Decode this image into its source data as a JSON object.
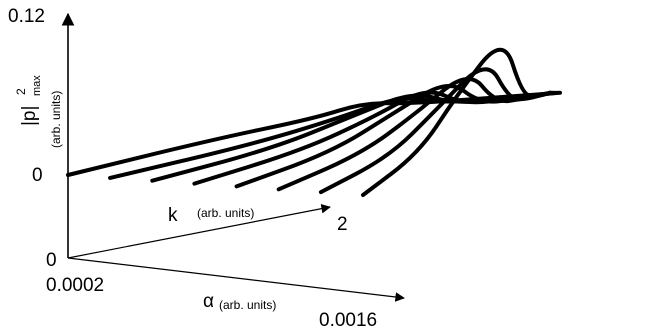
{
  "chart_data": {
    "type": "line",
    "projection": "3d-waterfall",
    "axes": {
      "z": {
        "label_main": "|p|",
        "label_sup": "2",
        "label_sub": "max",
        "label_units": "(arb. units)",
        "ticks": [
          "0.12",
          "0"
        ],
        "range": [
          0,
          0.12
        ]
      },
      "k": {
        "label": "k",
        "units": "(arb. units)",
        "tick_end": "2",
        "tick_origin": "0",
        "range": [
          0,
          2
        ]
      },
      "alpha": {
        "label": "α",
        "units": "(arb. units)",
        "tick_start": "0.0002",
        "tick_end": "0.0016",
        "range": [
          0.0002,
          0.0016
        ]
      }
    },
    "series": [
      {
        "alpha": 0.0002,
        "k": [
          0,
          0.6,
          1.0,
          1.2,
          1.4,
          1.8,
          2.0
        ],
        "p2": [
          0.0,
          0.02,
          0.03,
          0.04,
          0.035,
          0.033,
          0.032
        ]
      },
      {
        "alpha": 0.0004,
        "k": [
          0,
          0.6,
          1.0,
          1.3,
          1.5,
          1.8,
          2.0
        ],
        "p2": [
          0.0,
          0.015,
          0.03,
          0.045,
          0.034,
          0.032,
          0.032
        ]
      },
      {
        "alpha": 0.0006,
        "k": [
          0,
          0.6,
          1.0,
          1.3,
          1.5,
          1.8,
          2.0
        ],
        "p2": [
          0.0,
          0.015,
          0.035,
          0.05,
          0.034,
          0.032,
          0.032
        ]
      },
      {
        "alpha": 0.0008,
        "k": [
          0,
          0.6,
          1.0,
          1.3,
          1.5,
          1.8,
          2.0
        ],
        "p2": [
          0.0,
          0.015,
          0.035,
          0.055,
          0.034,
          0.032,
          0.032
        ]
      },
      {
        "alpha": 0.001,
        "k": [
          0,
          0.6,
          1.0,
          1.35,
          1.55,
          1.8,
          2.0
        ],
        "p2": [
          0.0,
          0.015,
          0.04,
          0.062,
          0.034,
          0.032,
          0.032
        ]
      },
      {
        "alpha": 0.0012,
        "k": [
          0,
          0.6,
          1.0,
          1.4,
          1.6,
          1.8,
          2.0
        ],
        "p2": [
          0.0,
          0.015,
          0.04,
          0.07,
          0.034,
          0.032,
          0.032
        ]
      },
      {
        "alpha": 0.0014,
        "k": [
          0,
          0.6,
          1.0,
          1.45,
          1.65,
          1.8,
          2.0
        ],
        "p2": [
          0.0,
          0.015,
          0.045,
          0.08,
          0.036,
          0.032,
          0.032
        ]
      },
      {
        "alpha": 0.0016,
        "k": [
          0,
          0.6,
          1.0,
          1.5,
          1.7,
          1.85,
          2.0
        ],
        "p2": [
          0.0,
          0.02,
          0.06,
          0.1,
          0.04,
          0.033,
          0.032
        ]
      }
    ]
  }
}
